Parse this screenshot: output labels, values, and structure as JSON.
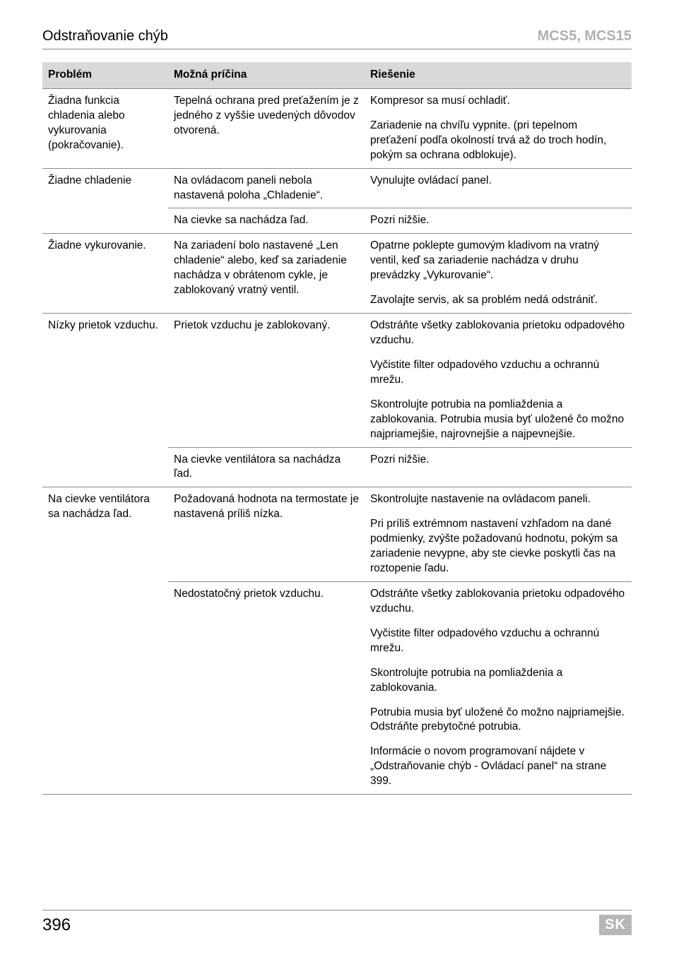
{
  "header": {
    "left": "Odstraňovanie chýb",
    "right": "MCS5, MCS15"
  },
  "table": {
    "columns": [
      "Problém",
      "Možná príčina",
      "Riešenie"
    ],
    "groups": [
      {
        "problem": "Žiadna funkcia chladenia alebo vykurovania (pokračovanie).",
        "rows": [
          {
            "cause": "Tepelná ochrana pred preťažením je z jedného z vyššie uvedených dôvodov otvorená.",
            "solutions": [
              "Kompresor sa musí ochladiť.",
              "Zariadenie na chvíľu vypnite. (pri tepelnom preťažení podľa okolností trvá až do troch hodín, pokým sa ochrana odblokuje)."
            ]
          }
        ]
      },
      {
        "problem": "Žiadne chladenie",
        "rows": [
          {
            "cause": "Na ovládacom paneli nebola nastavená poloha „Chladenie“.",
            "solutions": [
              "Vynulujte ovládací panel."
            ]
          },
          {
            "cause": "Na cievke sa nachádza ľad.",
            "solutions": [
              "Pozri nižšie."
            ]
          }
        ]
      },
      {
        "problem": "Žiadne vykurovanie.",
        "rows": [
          {
            "cause": "Na zariadení bolo nastavené „Len chladenie“ alebo, keď sa zariadenie nachádza v obrátenom cykle, je zablokovaný vratný ventil.",
            "solutions": [
              "Opatrne poklepte gumovým kladivom na vratný ventil, keď sa zariadenie nachádza v druhu prevádzky „Vykurovanie“.",
              "Zavolajte servis, ak sa problém nedá odstrániť."
            ]
          }
        ]
      },
      {
        "problem": "Nízky prietok vzduchu.",
        "rows": [
          {
            "cause": "Prietok vzduchu je zablokovaný.",
            "solutions": [
              "Odstráňte všetky zablokovania prietoku odpadového vzduchu.",
              "Vyčistite filter odpadového vzduchu a ochrannú mrežu.",
              "Skontrolujte potrubia na pomliaždenia a zablokovania. Potrubia musia byť uložené čo možno najpriamejšie, najrovnejšie a najpevnejšie."
            ]
          },
          {
            "cause": "Na cievke ventilátora sa nachádza ľad.",
            "solutions": [
              "Pozri nižšie."
            ]
          }
        ]
      },
      {
        "problem": "Na cievke ventilátora sa nachádza ľad.",
        "rows": [
          {
            "cause": "Požadovaná hodnota na termostate je nastavená príliš nízka.",
            "solutions": [
              "Skontrolujte nastavenie na ovládacom paneli.",
              "Pri príliš extrémnom nastavení vzhľadom na dané podmienky, zvýšte požadovanú hodnotu, pokým sa zariadenie nevypne, aby ste cievke poskytli čas na roztopenie ľadu."
            ]
          },
          {
            "cause": "Nedostatočný prietok vzduchu.",
            "solutions": [
              "Odstráňte všetky zablokovania prietoku odpadového vzduchu.",
              "Vyčistite filter odpadového vzduchu a ochrannú mrežu.",
              "Skontrolujte potrubia na pomliaždenia a zablokovania.",
              "Potrubia musia byť uložené čo možno najpriamejšie. Odstráňte prebytočné potrubia.",
              "Informácie o novom programovaní nájdete v „Odstraňovanie chýb - Ovládací panel“ na strane 399."
            ]
          }
        ]
      }
    ]
  },
  "footer": {
    "page": "396",
    "lang": "SK"
  }
}
